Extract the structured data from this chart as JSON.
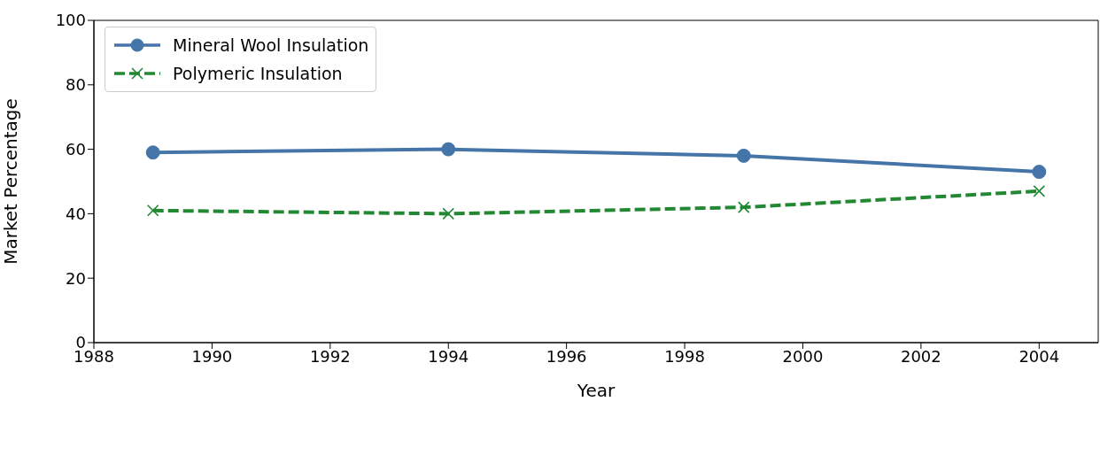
{
  "chart_data": {
    "type": "line",
    "xlabel": "Year",
    "ylabel": "Market Percentage",
    "x": [
      1989,
      1994,
      1999,
      2004
    ],
    "series": [
      {
        "name": "Mineral Wool Insulation",
        "color": "#4575a8",
        "values": [
          59,
          60,
          58,
          53
        ],
        "marker": "circle",
        "line_style": "solid"
      },
      {
        "name": "Polymeric Insulation",
        "color": "#228833",
        "values": [
          41,
          40,
          42,
          47
        ],
        "marker": "cross",
        "line_style": "dashed"
      }
    ],
    "xlim": [
      1988,
      2005
    ],
    "xticks": [
      1988,
      1990,
      1992,
      1994,
      1996,
      1998,
      2000,
      2002,
      2004
    ],
    "ylim": [
      0,
      100
    ],
    "yticks": [
      0,
      20,
      40,
      60,
      80,
      100
    ],
    "grid": false,
    "legend": "top left"
  }
}
